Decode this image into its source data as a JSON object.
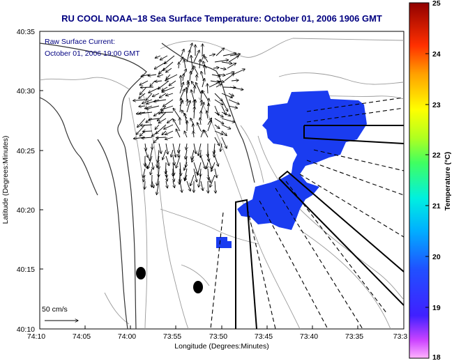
{
  "title": "RU COOL  NOAA–18  Sea Surface Temperature:  October 01, 2006 1906 GMT",
  "annotation": {
    "line1": "Raw Surface Current:",
    "line2": "October 01, 2006 19:00 GMT"
  },
  "axes": {
    "xlabel": "Longitude (Degrees:Minutes)",
    "ylabel": "Latitude (Degrees:Minutes)",
    "x_ticks": [
      "74:10",
      "74:05",
      "74:00",
      "73:55",
      "73:50",
      "73:45",
      "73:40",
      "73:35",
      "73:3"
    ],
    "y_ticks": [
      "40:35",
      "40:30",
      "40:25",
      "40:20",
      "40:15",
      "40:10"
    ]
  },
  "scale_label": "50 cm/s",
  "colorbar": {
    "label": "Temperature (°C)",
    "ticks": [
      "25",
      "24",
      "23",
      "22",
      "21",
      "20",
      "19",
      "18"
    ],
    "range": [
      18,
      25
    ]
  },
  "colors": {
    "title": "#000080",
    "sst_patch": "#1a3cf0",
    "land_contour": "#999999",
    "coastline": "#333333"
  },
  "chart_data": {
    "type": "map",
    "title": "RU COOL  NOAA–18  Sea Surface Temperature:  October 01, 2006 1906 GMT",
    "xlabel": "Longitude (Degrees:Minutes)",
    "ylabel": "Latitude (Degrees:Minutes)",
    "xlim": [
      "74:10",
      "73:30"
    ],
    "ylim": [
      "40:10",
      "40:35"
    ],
    "colorbar_range_celsius": [
      18,
      25
    ],
    "sst_visible_value_celsius": 19,
    "current_vectors_scale": "50 cm/s"
  }
}
